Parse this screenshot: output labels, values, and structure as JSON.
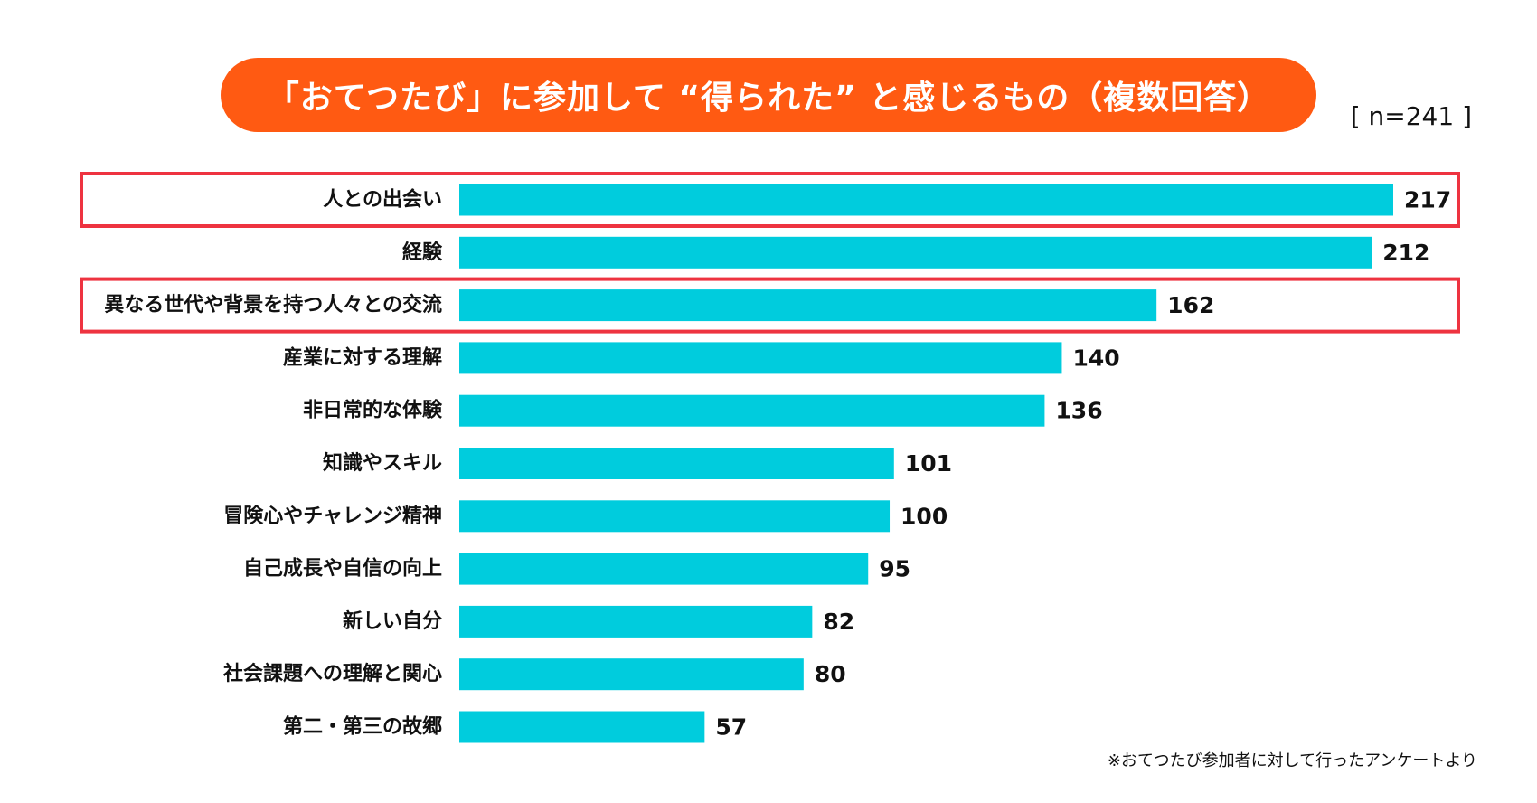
{
  "header": {
    "title": "「おてつたび」に参加して “得られた” と感じるもの（複数回答）",
    "sample_size": "[ n=241 ]"
  },
  "colors": {
    "title_bg": "#ff5a12",
    "bar": "#00ccdd",
    "highlight_border": "#ee3340"
  },
  "chart_data": {
    "type": "bar",
    "orientation": "horizontal",
    "title": "「おてつたび」に参加して “得られた” と感じるもの（複数回答）",
    "categories": [
      "人との出会い",
      "経験",
      "異なる世代や背景を持つ人々との交流",
      "産業に対する理解",
      "非日常的な体験",
      "知識やスキル",
      "冒険心やチャレンジ精神",
      "自己成長や自信の向上",
      "新しい自分",
      "社会課題への理解と関心",
      "第二・第三の故郷"
    ],
    "values": [
      217,
      212,
      162,
      140,
      136,
      101,
      100,
      95,
      82,
      80,
      57
    ],
    "highlighted": [
      "人との出会い",
      "異なる世代や背景を持つ人々との交流"
    ],
    "xlim": [
      0,
      217
    ],
    "grid": false,
    "legend": "none",
    "xlabel": "",
    "ylabel": ""
  },
  "footnote": "※おてつたび参加者に対して行ったアンケートより"
}
